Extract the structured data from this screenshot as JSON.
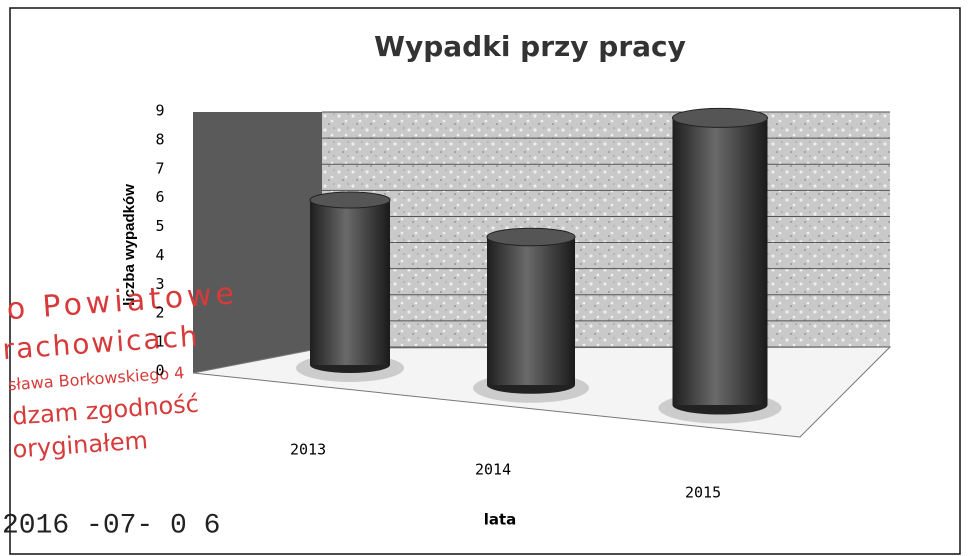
{
  "chart_data": {
    "type": "bar",
    "title": "Wypadki przy pracy",
    "x_label": "lata",
    "y_label": "liczba wypadków",
    "categories": [
      "2013",
      "2014",
      "2015"
    ],
    "values": [
      6,
      5,
      9
    ],
    "color": "#3a3a3a",
    "ylim": [
      0,
      9
    ],
    "yticks": [
      0,
      1,
      2,
      3,
      4,
      5,
      6,
      7,
      8,
      9
    ],
    "grid": true
  },
  "stamp": {
    "lines": [
      "o Powiatowe",
      "rachowicach",
      "sława Borkowskiego 4",
      "dzam zgodność",
      "oryginałem"
    ],
    "date": "2016 -07- 0 6"
  }
}
